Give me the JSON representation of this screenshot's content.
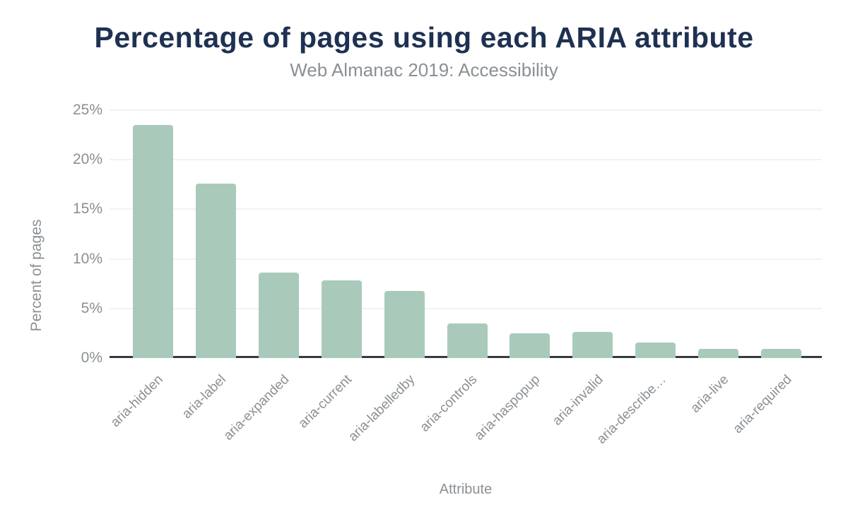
{
  "chart_data": {
    "type": "bar",
    "title": "Percentage of pages using each ARIA attribute",
    "subtitle": "Web Almanac 2019: Accessibility",
    "xlabel": "Attribute",
    "ylabel": "Percent of pages",
    "categories": [
      "aria-hidden",
      "aria-label",
      "aria-expanded",
      "aria-current",
      "aria-labelledby",
      "aria-controls",
      "aria-haspopup",
      "aria-invalid",
      "aria-describe…",
      "aria-live",
      "aria-required"
    ],
    "values": [
      23.5,
      17.6,
      8.6,
      7.8,
      6.8,
      3.5,
      2.5,
      2.6,
      1.6,
      0.9,
      0.9
    ],
    "ylim": [
      0,
      25
    ],
    "yticks": [
      0,
      5,
      10,
      15,
      20,
      25
    ],
    "ytick_suffix": "%",
    "grid": "horizontal-only",
    "legend": "none",
    "colors": {
      "bar": "#a9cabb",
      "title": "#1e3152",
      "muted_text": "#8b9094",
      "gridline": "#f1f2f2",
      "axis_line": "#343943",
      "background": "#ffffff"
    }
  }
}
